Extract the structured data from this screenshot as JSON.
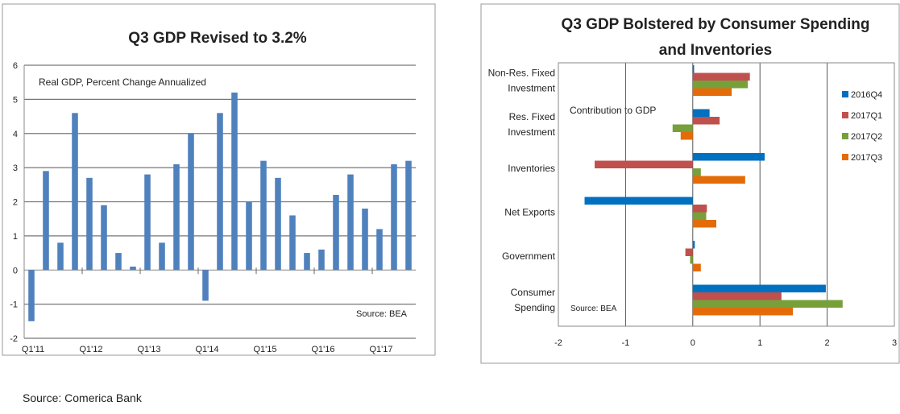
{
  "chart_data": [
    {
      "type": "bar",
      "title": "Q3 GDP Revised to 3.2%",
      "annotation": "Real GDP, Percent Change Annualized",
      "source": "Source: BEA",
      "ylim": [
        -2,
        6
      ],
      "yticks": [
        -2,
        -1,
        0,
        1,
        2,
        3,
        4,
        5,
        6
      ],
      "xtick_labels": [
        "Q1'11",
        "Q1'12",
        "Q1'13",
        "Q1'14",
        "Q1'15",
        "Q1'16",
        "Q1'17"
      ],
      "grid": true,
      "color": "#4f81bd",
      "values": [
        -1.5,
        2.9,
        0.8,
        4.6,
        2.7,
        1.9,
        0.5,
        0.1,
        2.8,
        0.8,
        3.1,
        4.0,
        -0.9,
        4.6,
        5.2,
        2.0,
        3.2,
        2.7,
        1.6,
        0.5,
        0.6,
        2.2,
        2.8,
        1.8,
        1.2,
        3.1,
        3.2
      ]
    },
    {
      "type": "bar",
      "orientation": "horizontal",
      "title": "Q3 GDP Bolstered by Consumer Spending and Inventories",
      "title_lines": [
        "Q3 GDP Bolstered by Consumer Spending",
        "and Inventories"
      ],
      "annotation": "Contribution to GDP",
      "source": "Source: BEA",
      "xlim": [
        -2,
        3
      ],
      "xticks": [
        -2,
        -1,
        0,
        1,
        2,
        3
      ],
      "grid": true,
      "legend": "right",
      "categories": [
        [
          "Non-Res. Fixed",
          "Investment"
        ],
        [
          "Res. Fixed",
          "Investment"
        ],
        [
          "Inventories"
        ],
        [
          "Net Exports"
        ],
        [
          "Government"
        ],
        [
          "Consumer",
          "Spending"
        ]
      ],
      "series": [
        {
          "name": "2016Q4",
          "color": "#0070c0",
          "values": [
            0.02,
            0.25,
            1.07,
            -1.61,
            0.03,
            1.98
          ]
        },
        {
          "name": "2017Q1",
          "color": "#c0504d",
          "values": [
            0.85,
            0.4,
            -1.46,
            0.21,
            -0.11,
            1.32
          ]
        },
        {
          "name": "2017Q2",
          "color": "#77a03a",
          "values": [
            0.82,
            -0.3,
            0.12,
            0.2,
            -0.04,
            2.23
          ]
        },
        {
          "name": "2017Q3",
          "color": "#e36c09",
          "values": [
            0.58,
            -0.18,
            0.78,
            0.35,
            0.12,
            1.49
          ]
        }
      ]
    }
  ],
  "footer": "Source: Comerica Bank"
}
